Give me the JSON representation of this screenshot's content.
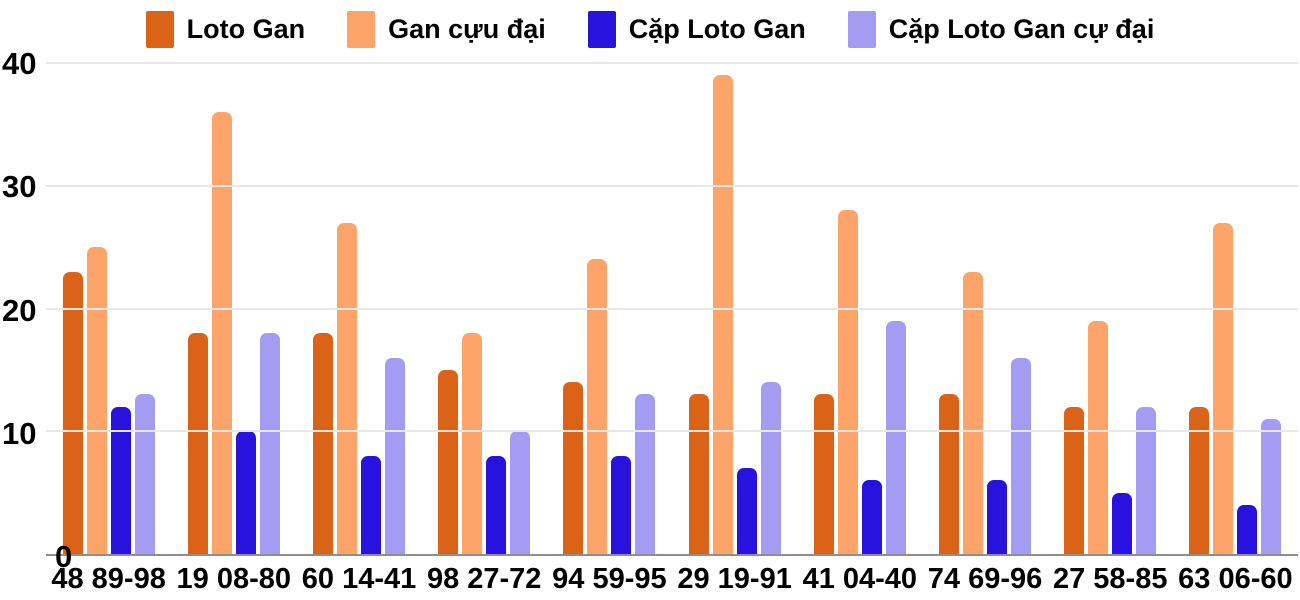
{
  "chart": {
    "background": "#ffffff",
    "gridline_color": "#e8e8e8",
    "baseline_color": "#8f8f8f",
    "legend": [
      {
        "label": "Loto Gan",
        "color": "#db6317"
      },
      {
        "label": "Gan cựu đại",
        "color": "#fca469"
      },
      {
        "label": "Cặp Loto Gan",
        "color": "#2812dd"
      },
      {
        "label": "Cặp Loto Gan cự đại",
        "color": "#a49bf3"
      }
    ]
  },
  "chart_data": {
    "type": "bar",
    "title": "",
    "xlabel": "",
    "ylabel": "",
    "categories": [
      "48 89-98",
      "19 08-80",
      "60 14-41",
      "98 27-72",
      "94 59-95",
      "29 19-91",
      "41 04-40",
      "74 69-96",
      "27 58-85",
      "63 06-60"
    ],
    "series": [
      {
        "name": "Loto Gan",
        "color": "#db6317",
        "values": [
          23,
          18,
          18,
          15,
          14,
          13,
          13,
          13,
          12,
          12
        ]
      },
      {
        "name": "Gan cựu đại",
        "color": "#fca469",
        "values": [
          25,
          36,
          27,
          18,
          24,
          39,
          28,
          23,
          19,
          27
        ]
      },
      {
        "name": "Cặp Loto Gan",
        "color": "#2812dd",
        "values": [
          12,
          10,
          8,
          8,
          8,
          7,
          6,
          6,
          5,
          4
        ]
      },
      {
        "name": "Cặp Loto Gan cự đại",
        "color": "#a49bf3",
        "values": [
          13,
          18,
          16,
          10,
          13,
          14,
          19,
          16,
          12,
          11
        ]
      }
    ],
    "ylim": [
      0,
      40
    ],
    "y_ticks": [
      40,
      30,
      20,
      10,
      0
    ],
    "grid": true,
    "legend_position": "top"
  }
}
